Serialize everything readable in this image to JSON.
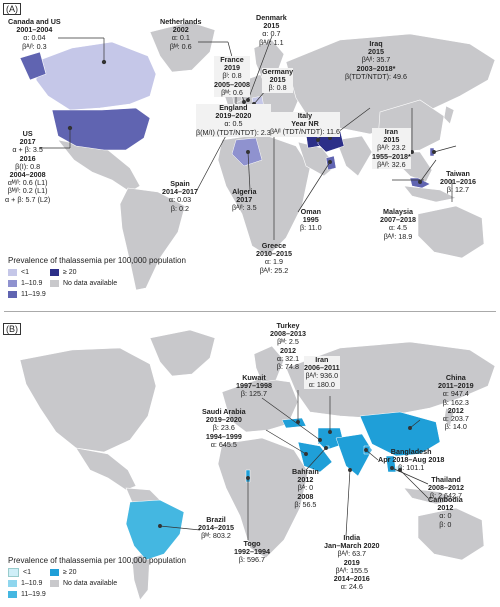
{
  "colors": {
    "land": "#c8c8cb",
    "ocean": "#ffffff",
    "a_lt1": "#c5c7e8",
    "a_1_10": "#8f92cf",
    "a_11_19": "#6064b1",
    "a_ge20": "#2c2f88",
    "b_lt1": "#cfeff8",
    "b_1_10": "#8fd6ee",
    "b_11_19": "#44b7e1",
    "b_ge20": "#1f9fd8"
  },
  "panelA": {
    "label": "(A)",
    "legend": {
      "title": "Prevalence of thalassemia per 100,000 population",
      "items": [
        "<1",
        "≥ 20",
        "1–10.9",
        "No data available",
        "11–19.9"
      ]
    },
    "annotations": {
      "canada_us": {
        "country": "Canada and US",
        "years": "2001–2004",
        "lines": [
          "α: 0.04",
          "βᴬ/ᴵ: 0.3"
        ]
      },
      "us": {
        "country": "US",
        "years": "2017",
        "lines": [
          "α + β: 3.5",
          "2016",
          "β(I): 0.8",
          "2004–2008",
          "αᴹ/ᴵ: 0.6 (L1)",
          "βᴹ/ᴵ: 0.2 (L1)",
          "α + β: 5.7 (L2)"
        ]
      },
      "netherlands": {
        "country": "Netherlands",
        "years": "2002",
        "lines": [
          "α: 0.1",
          "βᴹ: 0.6"
        ]
      },
      "denmark": {
        "country": "Denmark",
        "years": "2015",
        "lines": [
          "α: 0.7",
          "βᴬ/ᴵ: 1.1"
        ]
      },
      "france": {
        "country": "France",
        "years": "2019",
        "lines": [
          "βᴵ: 0.8",
          "2005–2008",
          "βᴹ: 0.6"
        ]
      },
      "germany": {
        "country": "Germany",
        "years": "2015",
        "lines": [
          "β: 0.8"
        ]
      },
      "iraq": {
        "country": "Iraq",
        "years": "2015",
        "lines": [
          "βᴬ/ᴵ: 35.7",
          "2003–2018*",
          "β(TDT/NTDT): 49.6"
        ]
      },
      "england": {
        "country": "England",
        "years": "2019–2020",
        "lines": [
          "α: 0.5",
          "β(M/I) (TDT/NTDT): 2.3"
        ]
      },
      "italy": {
        "country": "Italy",
        "years": "Year NR",
        "lines": [
          "βᴬ/ᴵ (TDT/NTDT): 11.6"
        ]
      },
      "iran": {
        "country": "Iran",
        "years": "2015",
        "lines": [
          "βᴬ/ᴵ: 23.2",
          "1955–2018*",
          "βᴬ/ᴵ: 32.6"
        ]
      },
      "taiwan": {
        "country": "Taiwan",
        "years": "2001–2016",
        "lines": [
          "β: 12.7"
        ]
      },
      "spain": {
        "country": "Spain",
        "years": "2014–2017",
        "lines": [
          "α: 0.03",
          "β: 0.2"
        ]
      },
      "algeria": {
        "country": "Algeria",
        "years": "2017",
        "lines": [
          "βᴬ/ᴵ: 3.5"
        ]
      },
      "oman": {
        "country": "Oman",
        "years": "1995",
        "lines": [
          "β: 11.0"
        ]
      },
      "malaysia": {
        "country": "Malaysia",
        "years": "2007–2018",
        "lines": [
          "α: 4.5",
          "βᴬ/ᴵ: 18.9"
        ]
      },
      "greece": {
        "country": "Greece",
        "years": "2010–2015",
        "lines": [
          "α: 1.9",
          "βᴬ/ᴵ: 25.2"
        ]
      }
    }
  },
  "panelB": {
    "label": "(B)",
    "legend": {
      "title": "Prevalence of thalassemia per 100,000 population",
      "items": [
        "<1",
        "≥ 20",
        "1–10.9",
        "No data available",
        "11–19.9"
      ]
    },
    "annotations": {
      "turkey": {
        "country": "Turkey",
        "years": "2008–2013",
        "lines": [
          "βᴹ: 2.5",
          "2012",
          "α: 32.1",
          "β: 74.8"
        ]
      },
      "iran": {
        "country": "Iran",
        "years": "2006–2011",
        "lines": [
          "βᴬ/ᴵ: 936.0",
          "α: 180.0"
        ]
      },
      "kuwait": {
        "country": "Kuwait",
        "years": "1997–1998",
        "lines": [
          "β: 125.7"
        ]
      },
      "china": {
        "country": "China",
        "years": "2011–2019",
        "lines": [
          "α: 947.4",
          "β: 162.3",
          "2012",
          "α: 203.7",
          "β: 14.0"
        ]
      },
      "saudi": {
        "country": "Saudi Arabia",
        "years": "2019–2020",
        "lines": [
          "β: 23.6",
          "1994–1999",
          "α: 645.5"
        ]
      },
      "bahrain": {
        "country": "Bahrain",
        "years": "2012",
        "lines": [
          "βᴬ: 0",
          "2008",
          "β: 56.5"
        ]
      },
      "bangladesh": {
        "country": "Bangladesh",
        "years": "Apr 2018–Aug 2018",
        "lines": [
          "β: 101.1"
        ]
      },
      "thailand": {
        "country": "Thailand",
        "years": "2008–2012",
        "lines": [
          "β: 2,642.7"
        ]
      },
      "brazil": {
        "country": "Brazil",
        "years": "2014–2015",
        "lines": [
          "βᴹ: 803.2"
        ]
      },
      "togo": {
        "country": "Togo",
        "years": "1992–1994",
        "lines": [
          "β: 596.7"
        ]
      },
      "cambodia": {
        "country": "Cambodia",
        "years": "2012",
        "lines": [
          "α: 0",
          "β: 0"
        ]
      },
      "india": {
        "country": "India",
        "years": "Jan–March 2020",
        "lines": [
          "βᴬ/ᴵ: 63.7",
          "2019",
          "βᴬ/ᴵ: 155.5",
          "2014–2016",
          "α: 24.6"
        ]
      }
    }
  }
}
